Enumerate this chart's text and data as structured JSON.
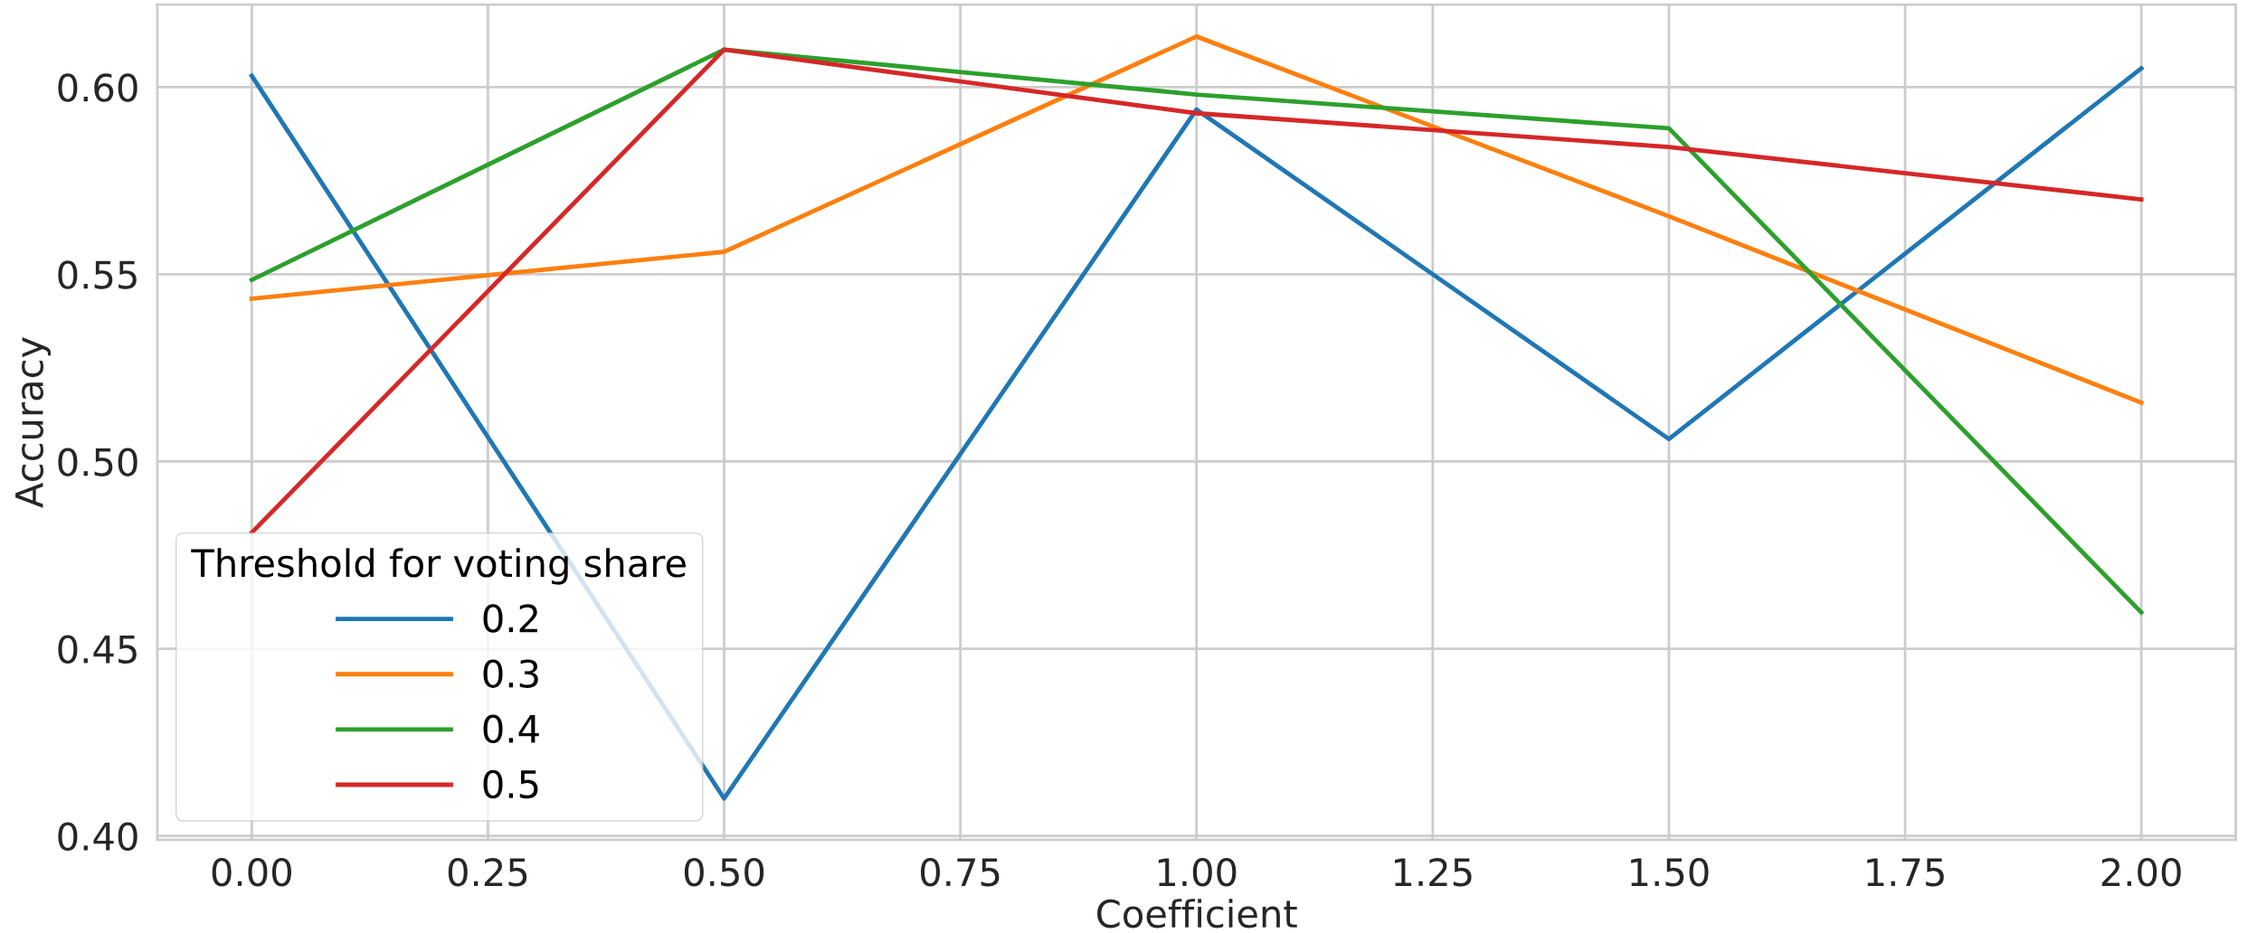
{
  "chart_data": {
    "type": "line",
    "xlabel": "Coefficient",
    "ylabel": "Accuracy",
    "legend_title": "Threshold for voting share",
    "x": [
      0.0,
      0.5,
      1.0,
      1.5,
      2.0
    ],
    "series": [
      {
        "name": "0.2",
        "color": "#1f77b4",
        "values": [
          0.603,
          0.41,
          0.594,
          0.506,
          0.605
        ]
      },
      {
        "name": "0.3",
        "color": "#ff7f0e",
        "values": [
          0.5435,
          0.556,
          0.6135,
          0.5655,
          0.5157
        ]
      },
      {
        "name": "0.4",
        "color": "#2ca02c",
        "values": [
          0.5485,
          0.61,
          0.598,
          0.589,
          0.4597
        ]
      },
      {
        "name": "0.5",
        "color": "#d62728",
        "values": [
          0.481,
          0.61,
          0.593,
          0.584,
          0.57
        ]
      }
    ],
    "xlim": [
      -0.1,
      2.1
    ],
    "ylim": [
      0.399,
      0.622
    ],
    "xticks": [
      {
        "value": 0,
        "label": "0.00"
      },
      {
        "value": 0.25,
        "label": "0.25"
      },
      {
        "value": 0.5,
        "label": "0.50"
      },
      {
        "value": 0.75,
        "label": "0.75"
      },
      {
        "value": 1,
        "label": "1.00"
      },
      {
        "value": 1.25,
        "label": "1.25"
      },
      {
        "value": 1.5,
        "label": "1.50"
      },
      {
        "value": 1.75,
        "label": "1.75"
      },
      {
        "value": 2,
        "label": "2.00"
      }
    ],
    "yticks": [
      {
        "value": 0.4,
        "label": "0.40"
      },
      {
        "value": 0.45,
        "label": "0.45"
      },
      {
        "value": 0.5,
        "label": "0.50"
      },
      {
        "value": 0.55,
        "label": "0.55"
      },
      {
        "value": 0.6,
        "label": "0.60"
      }
    ],
    "grid": true,
    "legend": "lower left",
    "marker": "none",
    "line_style": "solid"
  }
}
